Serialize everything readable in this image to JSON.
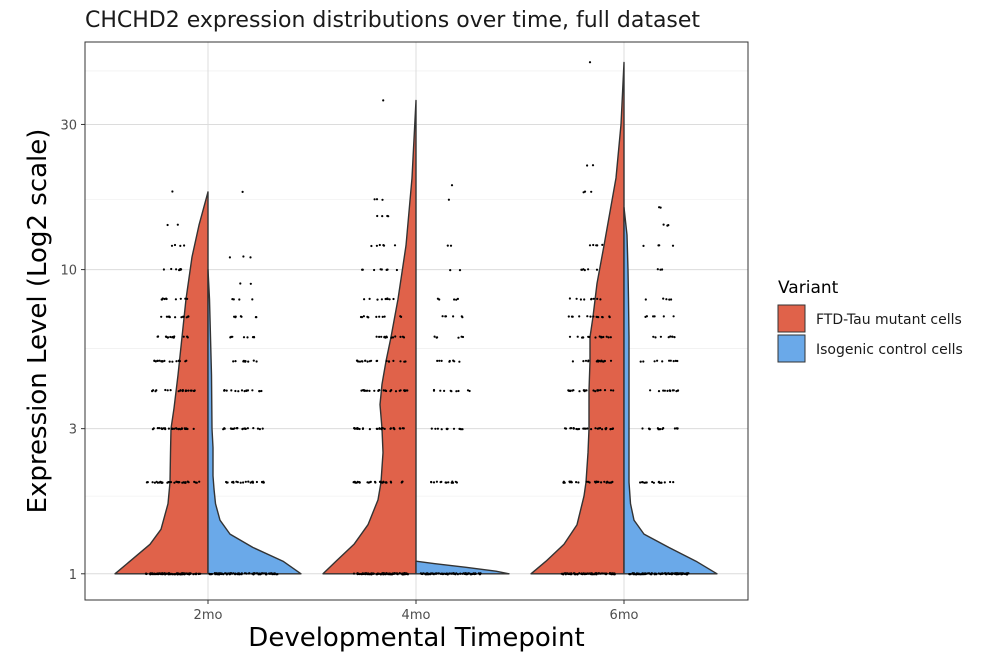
{
  "chart_data": {
    "type": "split-violin",
    "title": "CHCHD2 expression distributions over time, full dataset",
    "xlabel": "Developmental Timepoint",
    "ylabel": "Expression Level (Log2 scale)",
    "y_scale": "log2",
    "ylim": [
      0.82,
      56
    ],
    "y_ticks": [
      1,
      3,
      10,
      30
    ],
    "y_minor_gridlines": [
      1.8,
      5.5,
      17,
      45
    ],
    "grid": true,
    "categories": [
      "2mo",
      "4mo",
      "6mo"
    ],
    "legend": {
      "title": "Variant",
      "position": "right",
      "entries": [
        {
          "label": "FTD-Tau mutant cells",
          "color": "#E0624A"
        },
        {
          "label": "Isogenic control cells",
          "color": "#6AA9E9"
        }
      ]
    },
    "series": [
      {
        "name": "FTD-Tau mutant cells",
        "side": "left",
        "color": "#E0624A",
        "violins": [
          {
            "category": "2mo",
            "max": 18,
            "profile": [
              [
                1.0,
                0.93
              ],
              [
                1.1,
                0.78
              ],
              [
                1.25,
                0.58
              ],
              [
                1.4,
                0.47
              ],
              [
                1.7,
                0.4
              ],
              [
                2.0,
                0.38
              ],
              [
                2.5,
                0.375
              ],
              [
                3.0,
                0.37
              ],
              [
                3.5,
                0.34
              ],
              [
                4.5,
                0.3
              ],
              [
                6,
                0.26
              ],
              [
                8,
                0.22
              ],
              [
                11,
                0.16
              ],
              [
                14,
                0.09
              ],
              [
                18,
                0.0
              ]
            ],
            "points": [
              [
                1,
                0.5,
                90
              ],
              [
                2,
                0.5,
                35
              ],
              [
                3,
                0.4,
                30
              ],
              [
                4,
                0.4,
                22
              ],
              [
                5,
                0.35,
                18
              ],
              [
                6,
                0.32,
                14
              ],
              [
                7,
                0.3,
                12
              ],
              [
                8,
                0.28,
                10
              ],
              [
                10,
                0.28,
                8
              ],
              [
                12,
                0.22,
                4
              ],
              [
                14,
                0.1,
                2
              ],
              [
                18,
                0.05,
                1
              ]
            ]
          },
          {
            "category": "4mo",
            "max": 36,
            "profile": [
              [
                1.0,
                0.93
              ],
              [
                1.1,
                0.8
              ],
              [
                1.25,
                0.62
              ],
              [
                1.45,
                0.48
              ],
              [
                1.75,
                0.38
              ],
              [
                2.0,
                0.35
              ],
              [
                2.5,
                0.33
              ],
              [
                3.0,
                0.34
              ],
              [
                3.6,
                0.36
              ],
              [
                4.2,
                0.34
              ],
              [
                5,
                0.3
              ],
              [
                6,
                0.25
              ],
              [
                8,
                0.18
              ],
              [
                12,
                0.1
              ],
              [
                20,
                0.04
              ],
              [
                36,
                0.0
              ]
            ],
            "points": [
              [
                1,
                0.5,
                100
              ],
              [
                2,
                0.5,
                30
              ],
              [
                3,
                0.5,
                30
              ],
              [
                4,
                0.5,
                25
              ],
              [
                5,
                0.45,
                20
              ],
              [
                6,
                0.45,
                14
              ],
              [
                7,
                0.4,
                12
              ],
              [
                8,
                0.35,
                10
              ],
              [
                10,
                0.35,
                8
              ],
              [
                12,
                0.3,
                6
              ],
              [
                15,
                0.2,
                4
              ],
              [
                17,
                0.15,
                3
              ],
              [
                36,
                0.05,
                1
              ]
            ]
          },
          {
            "category": "6mo",
            "max": 48,
            "profile": [
              [
                1.0,
                0.93
              ],
              [
                1.1,
                0.78
              ],
              [
                1.25,
                0.6
              ],
              [
                1.45,
                0.47
              ],
              [
                1.8,
                0.4
              ],
              [
                2.0,
                0.38
              ],
              [
                2.5,
                0.36
              ],
              [
                3.0,
                0.35
              ],
              [
                4.0,
                0.35
              ],
              [
                5,
                0.34
              ],
              [
                6,
                0.34
              ],
              [
                7,
                0.31
              ],
              [
                9,
                0.27
              ],
              [
                12,
                0.2
              ],
              [
                20,
                0.08
              ],
              [
                30,
                0.03
              ],
              [
                48,
                0.0
              ]
            ],
            "points": [
              [
                1,
                0.5,
                90
              ],
              [
                2,
                0.5,
                30
              ],
              [
                3,
                0.45,
                28
              ],
              [
                4,
                0.45,
                22
              ],
              [
                5,
                0.4,
                18
              ],
              [
                6,
                0.4,
                16
              ],
              [
                7,
                0.38,
                14
              ],
              [
                8,
                0.35,
                10
              ],
              [
                10,
                0.3,
                6
              ],
              [
                12,
                0.25,
                5
              ],
              [
                18,
                0.15,
                3
              ],
              [
                22,
                0.08,
                2
              ],
              [
                48,
                0.02,
                1
              ]
            ]
          }
        ]
      },
      {
        "name": "Isogenic control cells",
        "side": "right",
        "color": "#6AA9E9",
        "violins": [
          {
            "category": "2mo",
            "max": 10,
            "profile": [
              [
                1.0,
                0.93
              ],
              [
                1.1,
                0.75
              ],
              [
                1.22,
                0.45
              ],
              [
                1.35,
                0.22
              ],
              [
                1.5,
                0.12
              ],
              [
                1.7,
                0.075
              ],
              [
                1.9,
                0.06
              ],
              [
                2.1,
                0.05
              ],
              [
                2.6,
                0.05
              ],
              [
                3.0,
                0.04
              ],
              [
                4.5,
                0.035
              ],
              [
                6,
                0.025
              ],
              [
                8,
                0.015
              ],
              [
                10,
                0.0
              ]
            ],
            "points": [
              [
                1,
                0.65,
                90
              ],
              [
                2,
                0.4,
                22
              ],
              [
                3,
                0.4,
                22
              ],
              [
                4,
                0.35,
                16
              ],
              [
                5,
                0.3,
                10
              ],
              [
                6,
                0.3,
                8
              ],
              [
                7,
                0.3,
                7
              ],
              [
                8,
                0.2,
                4
              ],
              [
                9,
                0.15,
                2
              ],
              [
                11,
                0.25,
                3
              ],
              [
                18,
                0.02,
                1
              ]
            ]
          },
          {
            "category": "4mo",
            "max": 1.1,
            "profile": [
              [
                1.0,
                0.93
              ],
              [
                1.02,
                0.8
              ],
              [
                1.05,
                0.5
              ],
              [
                1.08,
                0.18
              ],
              [
                1.1,
                0.0
              ]
            ],
            "points": [
              [
                1,
                0.55,
                90
              ],
              [
                2,
                0.4,
                14
              ],
              [
                3,
                0.35,
                12
              ],
              [
                4,
                0.35,
                10
              ],
              [
                5,
                0.3,
                8
              ],
              [
                6,
                0.3,
                6
              ],
              [
                7,
                0.3,
                6
              ],
              [
                8,
                0.28,
                5
              ],
              [
                10,
                0.2,
                2
              ],
              [
                12,
                0.15,
                2
              ],
              [
                17,
                0.05,
                1
              ],
              [
                19,
                0.02,
                1
              ]
            ]
          },
          {
            "category": "6mo",
            "max": 16,
            "profile": [
              [
                1.0,
                0.93
              ],
              [
                1.1,
                0.72
              ],
              [
                1.22,
                0.45
              ],
              [
                1.35,
                0.2
              ],
              [
                1.5,
                0.1
              ],
              [
                1.7,
                0.065
              ],
              [
                2.0,
                0.05
              ],
              [
                2.6,
                0.05
              ],
              [
                3.0,
                0.05
              ],
              [
                4.0,
                0.05
              ],
              [
                6,
                0.05
              ],
              [
                8,
                0.045
              ],
              [
                10,
                0.04
              ],
              [
                13,
                0.03
              ],
              [
                16,
                0.0
              ]
            ],
            "points": [
              [
                1,
                0.55,
                90
              ],
              [
                2,
                0.4,
                16
              ],
              [
                3,
                0.35,
                14
              ],
              [
                4,
                0.35,
                12
              ],
              [
                5,
                0.35,
                10
              ],
              [
                6,
                0.3,
                8
              ],
              [
                7,
                0.3,
                6
              ],
              [
                8,
                0.3,
                5
              ],
              [
                10,
                0.2,
                3
              ],
              [
                12,
                0.3,
                4
              ],
              [
                14,
                0.25,
                3
              ],
              [
                16,
                0.1,
                2
              ]
            ]
          }
        ]
      }
    ]
  }
}
